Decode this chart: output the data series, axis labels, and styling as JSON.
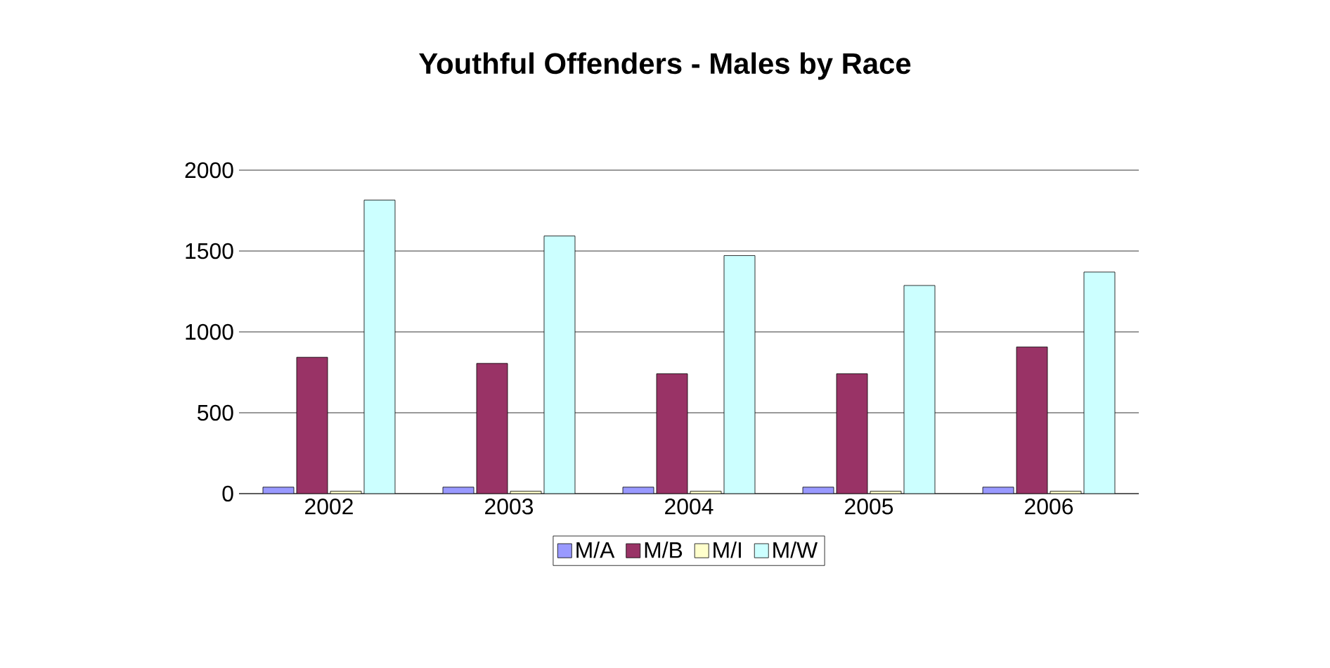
{
  "chart_data": {
    "type": "bar",
    "title": "Youthful Offenders - Males by Race",
    "categories": [
      "2002",
      "2003",
      "2004",
      "2005",
      "2006"
    ],
    "series": [
      {
        "name": "M/A",
        "color": "#9999ff",
        "values": [
          40,
          40,
          40,
          40,
          40
        ]
      },
      {
        "name": "M/B",
        "color": "#993366",
        "values": [
          843,
          805,
          741,
          741,
          907
        ]
      },
      {
        "name": "M/I",
        "color": "#ffffcc",
        "values": [
          15,
          15,
          15,
          15,
          15
        ]
      },
      {
        "name": "M/W",
        "color": "#ccffff",
        "values": [
          1815,
          1593,
          1472,
          1287,
          1370
        ]
      }
    ],
    "ylim": [
      0,
      2000
    ],
    "yticks": [
      0,
      500,
      1000,
      1500,
      2000
    ],
    "grid": "y",
    "legend": "bottom"
  }
}
